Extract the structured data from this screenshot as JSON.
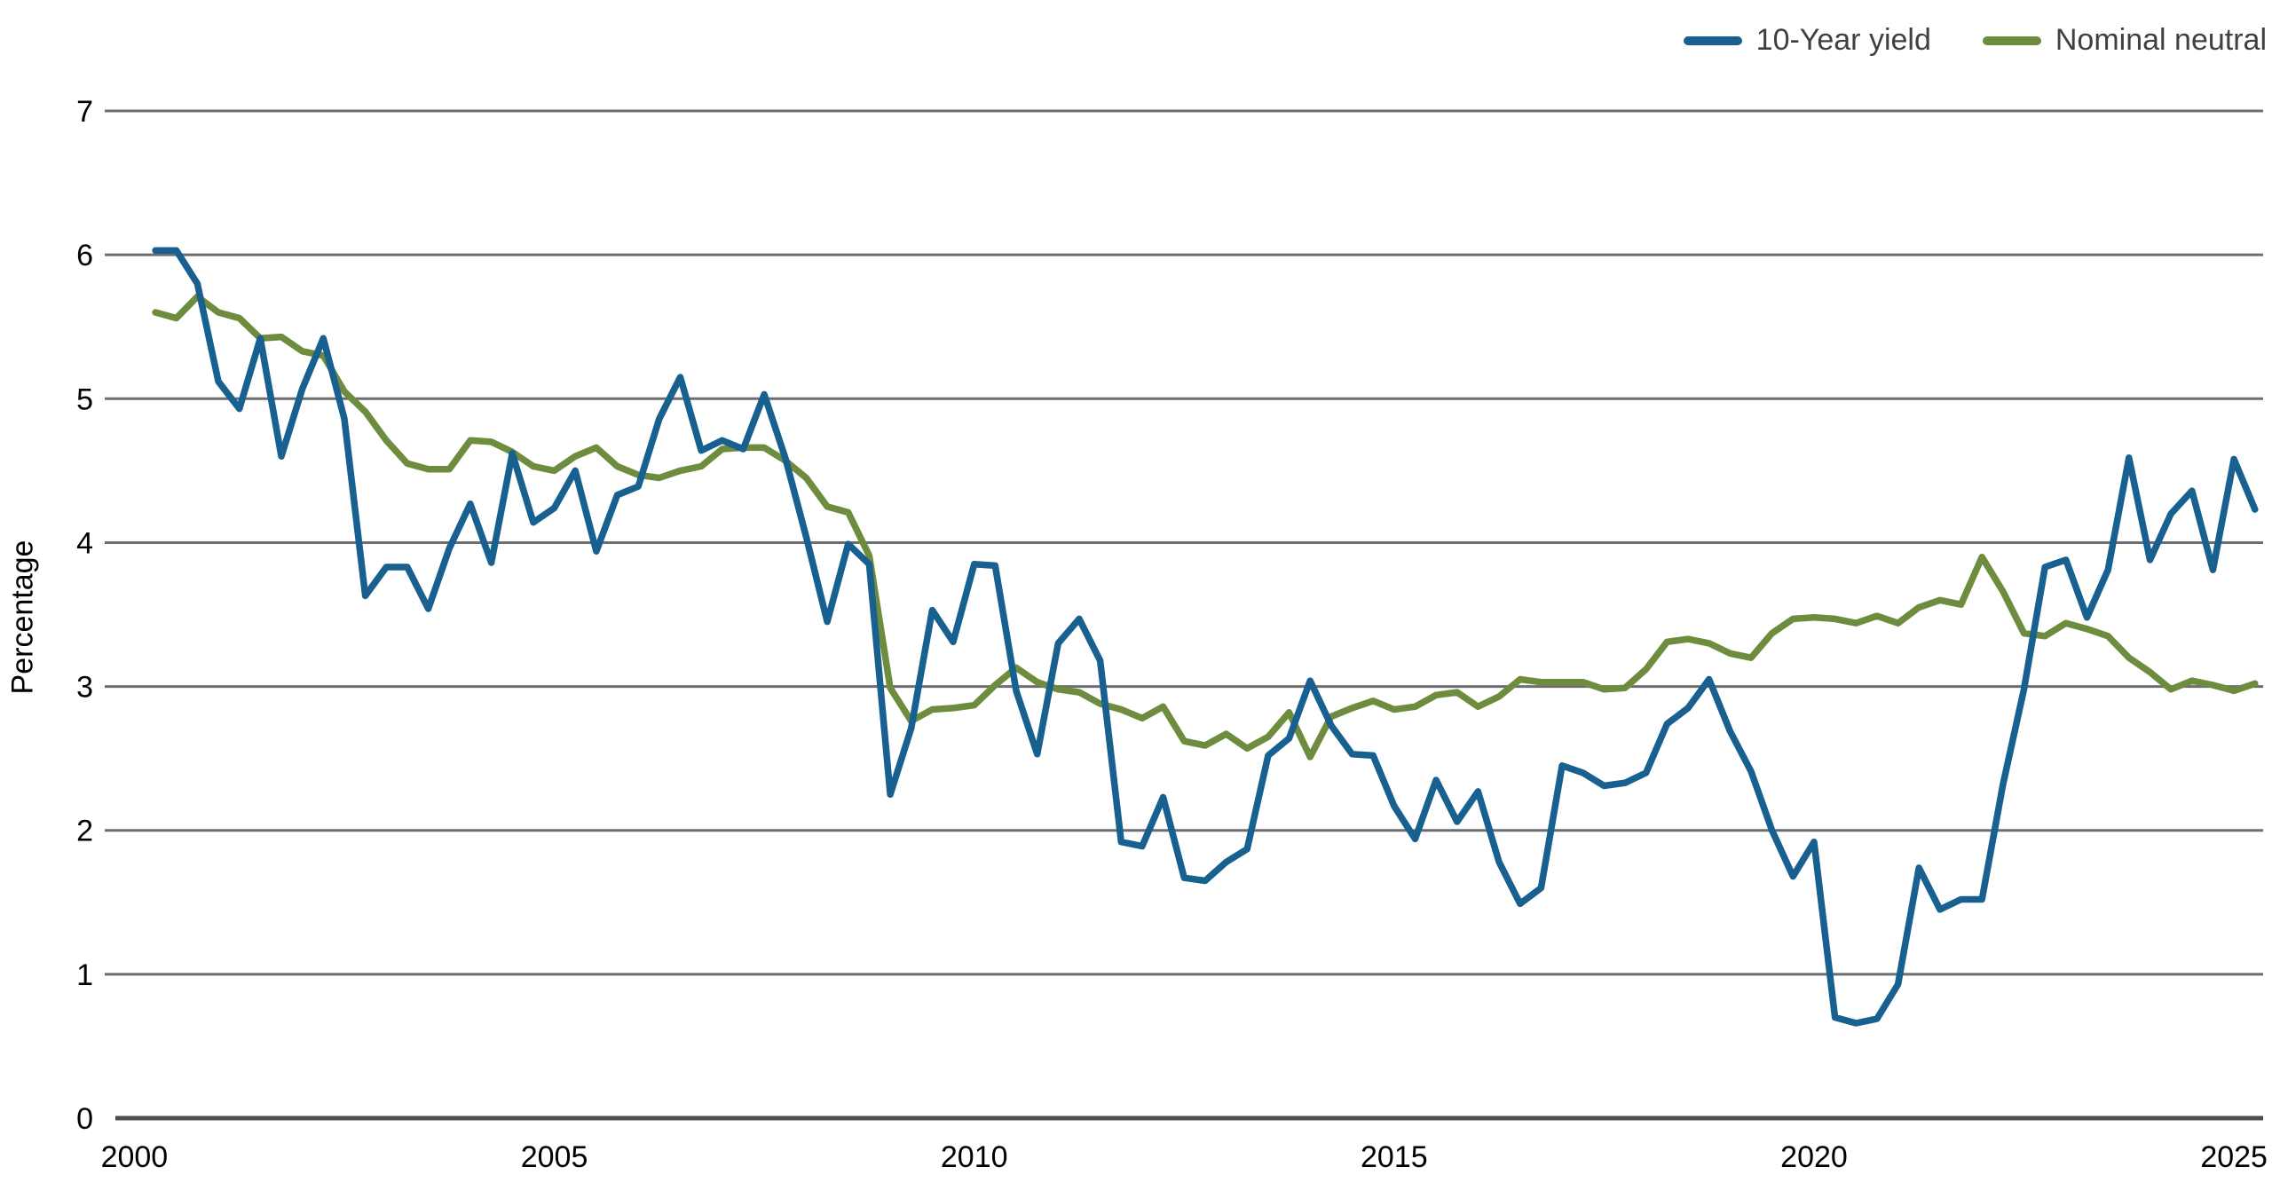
{
  "legend": {
    "series1_label": "10-Year yield",
    "series2_label": "Nominal neutral"
  },
  "y_axis": {
    "label": "Percentage",
    "ticks": [
      0,
      1,
      2,
      3,
      4,
      5,
      6,
      7
    ],
    "min": 0,
    "max": 7
  },
  "x_axis": {
    "ticks": [
      2000,
      2005,
      2010,
      2015,
      2020,
      2025
    ]
  },
  "colors": {
    "yield_blue": "#17608f",
    "neutral_green": "#6e8c3e",
    "gridline": "#6d6e71",
    "axis_line": "#4d4e50",
    "tick_text": "#000000",
    "legend_text": "#3f4042"
  },
  "chart_data": {
    "type": "line",
    "title": "",
    "xlabel": "",
    "ylabel": "Percentage",
    "ylim": [
      0,
      7
    ],
    "grid": "horizontal",
    "legend_position": "top-right",
    "frequency": "quarterly",
    "x_start": "2000Q1",
    "x_end": "2025Q1",
    "categories": [
      "2000Q1",
      "2000Q2",
      "2000Q3",
      "2000Q4",
      "2001Q1",
      "2001Q2",
      "2001Q3",
      "2001Q4",
      "2002Q1",
      "2002Q2",
      "2002Q3",
      "2002Q4",
      "2003Q1",
      "2003Q2",
      "2003Q3",
      "2003Q4",
      "2004Q1",
      "2004Q2",
      "2004Q3",
      "2004Q4",
      "2005Q1",
      "2005Q2",
      "2005Q3",
      "2005Q4",
      "2006Q1",
      "2006Q2",
      "2006Q3",
      "2006Q4",
      "2007Q1",
      "2007Q2",
      "2007Q3",
      "2007Q4",
      "2008Q1",
      "2008Q2",
      "2008Q3",
      "2008Q4",
      "2009Q1",
      "2009Q2",
      "2009Q3",
      "2009Q4",
      "2010Q1",
      "2010Q2",
      "2010Q3",
      "2010Q4",
      "2011Q1",
      "2011Q2",
      "2011Q3",
      "2011Q4",
      "2012Q1",
      "2012Q2",
      "2012Q3",
      "2012Q4",
      "2013Q1",
      "2013Q2",
      "2013Q3",
      "2013Q4",
      "2014Q1",
      "2014Q2",
      "2014Q3",
      "2014Q4",
      "2015Q1",
      "2015Q2",
      "2015Q3",
      "2015Q4",
      "2016Q1",
      "2016Q2",
      "2016Q3",
      "2016Q4",
      "2017Q1",
      "2017Q2",
      "2017Q3",
      "2017Q4",
      "2018Q1",
      "2018Q2",
      "2018Q3",
      "2018Q4",
      "2019Q1",
      "2019Q2",
      "2019Q3",
      "2019Q4",
      "2020Q1",
      "2020Q2",
      "2020Q3",
      "2020Q4",
      "2021Q1",
      "2021Q2",
      "2021Q3",
      "2021Q4",
      "2022Q1",
      "2022Q2",
      "2022Q3",
      "2022Q4",
      "2023Q1",
      "2023Q2",
      "2023Q3",
      "2023Q4",
      "2024Q1",
      "2024Q2",
      "2024Q3",
      "2024Q4",
      "2025Q1"
    ],
    "series": [
      {
        "name": "10-Year yield",
        "color": "#17608f",
        "values": [
          6.03,
          6.03,
          5.8,
          5.12,
          4.93,
          5.42,
          4.6,
          5.07,
          5.42,
          4.86,
          3.63,
          3.83,
          3.83,
          3.54,
          3.96,
          4.27,
          3.86,
          4.62,
          4.14,
          4.24,
          4.5,
          3.94,
          4.33,
          4.39,
          4.86,
          5.15,
          4.64,
          4.71,
          4.65,
          5.03,
          4.59,
          4.04,
          3.45,
          3.99,
          3.85,
          2.25,
          2.71,
          3.53,
          3.31,
          3.85,
          3.84,
          2.97,
          2.53,
          3.3,
          3.47,
          3.18,
          1.92,
          1.89,
          2.23,
          1.67,
          1.65,
          1.78,
          1.87,
          2.52,
          2.64,
          3.04,
          2.73,
          2.53,
          2.52,
          2.17,
          1.94,
          2.35,
          2.06,
          2.27,
          1.78,
          1.49,
          1.6,
          2.45,
          2.4,
          2.31,
          2.33,
          2.4,
          2.74,
          2.85,
          3.05,
          2.69,
          2.41,
          2.0,
          1.68,
          1.92,
          0.7,
          0.66,
          0.69,
          0.93,
          1.74,
          1.45,
          1.52,
          1.52,
          2.32,
          2.98,
          3.83,
          3.88,
          3.48,
          3.81,
          4.59,
          3.88,
          4.2,
          4.36,
          3.81,
          4.58,
          4.23
        ]
      },
      {
        "name": "Nominal neutral",
        "color": "#6e8c3e",
        "values": [
          5.6,
          5.56,
          5.71,
          5.6,
          5.56,
          5.42,
          5.43,
          5.33,
          5.3,
          5.05,
          4.91,
          4.71,
          4.55,
          4.51,
          4.51,
          4.71,
          4.7,
          4.63,
          4.53,
          4.5,
          4.6,
          4.66,
          4.53,
          4.47,
          4.45,
          4.5,
          4.53,
          4.65,
          4.66,
          4.66,
          4.57,
          4.45,
          4.25,
          4.21,
          3.91,
          2.99,
          2.76,
          2.84,
          2.85,
          2.87,
          3.01,
          3.13,
          3.03,
          2.98,
          2.96,
          2.88,
          2.84,
          2.78,
          2.86,
          2.62,
          2.59,
          2.67,
          2.57,
          2.65,
          2.82,
          2.51,
          2.79,
          2.85,
          2.9,
          2.84,
          2.86,
          2.94,
          2.96,
          2.86,
          2.93,
          3.05,
          3.03,
          3.03,
          3.03,
          2.98,
          2.99,
          3.12,
          3.31,
          3.33,
          3.3,
          3.23,
          3.2,
          3.37,
          3.47,
          3.48,
          3.47,
          3.44,
          3.49,
          3.44,
          3.55,
          3.6,
          3.57,
          3.9,
          3.66,
          3.37,
          3.35,
          3.44,
          3.4,
          3.35,
          3.2,
          3.1,
          2.98,
          3.04,
          3.01,
          2.97,
          3.02
        ]
      }
    ]
  }
}
